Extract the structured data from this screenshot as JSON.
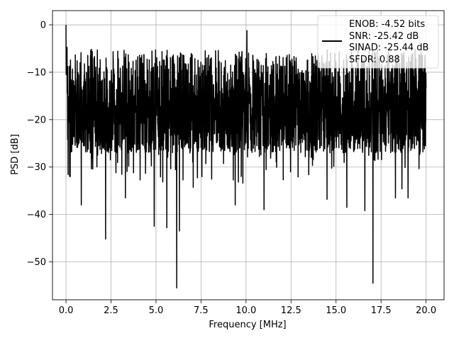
{
  "chart_data": {
    "type": "line",
    "title": "",
    "xlabel": "Frequency [MHz]",
    "ylabel": "PSD [dB]",
    "xlim": [
      -0.75,
      21.0
    ],
    "ylim": [
      -58.0,
      3.0
    ],
    "xticks": [
      0.0,
      2.5,
      5.0,
      7.5,
      10.0,
      12.5,
      15.0,
      17.5,
      20.0
    ],
    "xtick_labels": [
      "0.0",
      "2.5",
      "5.0",
      "7.5",
      "10.0",
      "12.5",
      "15.0",
      "17.5",
      "20.0"
    ],
    "yticks": [
      0,
      -10,
      -20,
      -30,
      -40,
      -50
    ],
    "ytick_labels": [
      "0",
      "−10",
      "−20",
      "−30",
      "−40",
      "−50"
    ],
    "grid": true,
    "legend": {
      "placement": "top-right",
      "entries": [
        "ENOB: -4.52 bits",
        "SNR: -25.42 dB",
        "SINAD: -25.44 dB",
        "SFDR: 0.88"
      ]
    },
    "series": [
      {
        "color": "#000000",
        "style": "noise-floor",
        "x_range": [
          0.0,
          20.0
        ],
        "envelope_top_dB": -5,
        "typical_floor_dB": -25,
        "peaks": [
          {
            "x": 0.0,
            "y": 0.0
          },
          {
            "x": 10.05,
            "y": -1.2
          }
        ],
        "dips": [
          {
            "x": 0.85,
            "y": -38.0
          },
          {
            "x": 2.2,
            "y": -45.2
          },
          {
            "x": 3.3,
            "y": -36.5
          },
          {
            "x": 4.9,
            "y": -42.5
          },
          {
            "x": 5.6,
            "y": -42.8
          },
          {
            "x": 6.15,
            "y": -55.5
          },
          {
            "x": 6.3,
            "y": -43.5
          },
          {
            "x": 9.4,
            "y": -38.0
          },
          {
            "x": 11.0,
            "y": -39.0
          },
          {
            "x": 14.5,
            "y": -36.8
          },
          {
            "x": 15.6,
            "y": -38.5
          },
          {
            "x": 16.6,
            "y": -39.2
          },
          {
            "x": 17.05,
            "y": -54.5
          },
          {
            "x": 18.3,
            "y": -36.5
          },
          {
            "x": 19.0,
            "y": -36.5
          }
        ]
      }
    ]
  }
}
